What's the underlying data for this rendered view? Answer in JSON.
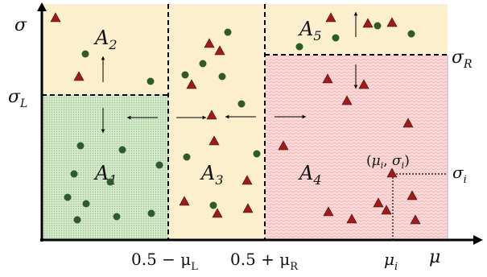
{
  "axes": {
    "y_label": "σ",
    "x_label": "μ"
  },
  "regions": [
    {
      "id": "A2",
      "letter": "A",
      "sub": "2"
    },
    {
      "id": "A1",
      "letter": "A",
      "sub": "1"
    },
    {
      "id": "A3",
      "letter": "A",
      "sub": "3"
    },
    {
      "id": "A5",
      "letter": "A",
      "sub": "5"
    },
    {
      "id": "A4",
      "letter": "A",
      "sub": "4"
    }
  ],
  "thresholds": {
    "sigma_L": {
      "base": "σ",
      "sub": "L"
    },
    "sigma_R": {
      "base": "σ",
      "sub": "R"
    },
    "sigma_i": {
      "base": "σ",
      "sub": "i"
    },
    "mu_left": "0.5 − μ",
    "mu_left_sub": "L",
    "mu_right": "0.5 + μ",
    "mu_right_sub": "R",
    "mu_i": {
      "base": "μ",
      "sub": "i"
    }
  },
  "point_label": "(μi, σi)",
  "point_label_parts": {
    "open": "(",
    "mu": "μ",
    "mu_sub": "i",
    "comma": ", ",
    "sigma": "σ",
    "sigma_sub": "i",
    "close": ")"
  },
  "colors": {
    "A1": "#c9e3bf",
    "A2": "#fbefce",
    "A3": "#fbefce",
    "A4": "#f9cfcf",
    "A5": "#fbefce",
    "circle": "#2f5a2d",
    "triangle": "#a31a1a"
  },
  "marker_types": [
    "circle",
    "triangle"
  ]
}
